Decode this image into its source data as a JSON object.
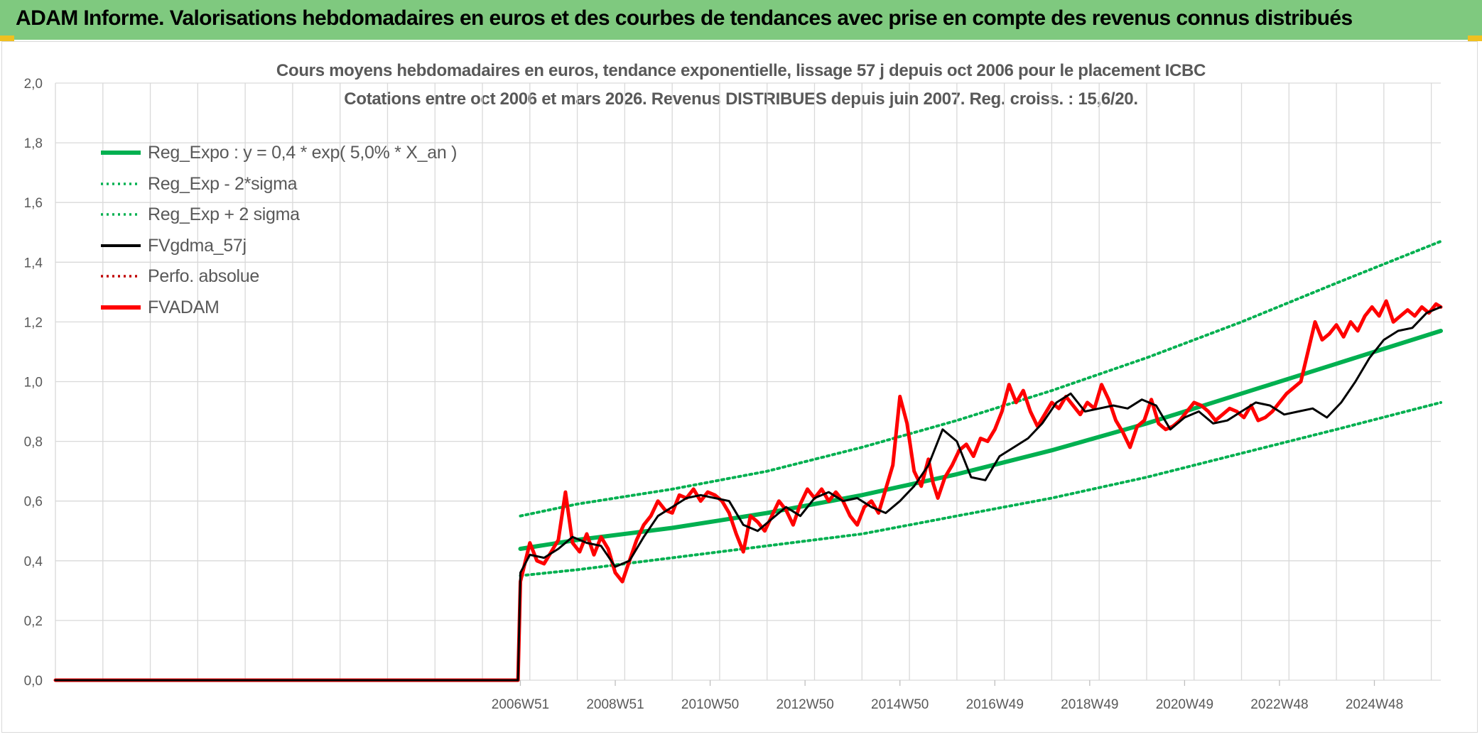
{
  "banner": {
    "title": "ADAM Informe. Valorisations hebdomadaires en euros et des courbes de tendances avec prise en compte des revenus connus distribués"
  },
  "colors": {
    "banner_bg": "#7fc97f",
    "reg_expo": "#00b050",
    "fvgdma": "#000000",
    "perfo": "#c00000",
    "fvadam": "#ff0000",
    "grid": "#d9d9d9"
  },
  "chart_data": {
    "type": "line",
    "title": "Cours moyens hebdomadaires en euros, tendance exponentielle, lissage 57 j depuis oct 2006 pour le placement ICBC",
    "subtitle": "Cotations entre oct 2006 et mars 2026. Revenus DISTRIBUES depuis juin 2007. Reg. croiss. : 15,6/20.",
    "xlabel": "",
    "ylabel": "",
    "ylim": [
      0,
      2
    ],
    "y_ticks": [
      "0,0",
      "0,2",
      "0,4",
      "0,6",
      "0,8",
      "1,0",
      "1,2",
      "1,4",
      "1,6",
      "1,8",
      "2,0"
    ],
    "x_ticks": [
      "2006W51",
      "2008W51",
      "2010W50",
      "2012W50",
      "2014W50",
      "2016W49",
      "2018W49",
      "2020W49",
      "2022W48",
      "2024W48"
    ],
    "grid": true,
    "legend_position": "top-left",
    "legend": [
      {
        "label": "Reg_Expo : y = 0,4 * exp( 5,0% *  X_an )",
        "style": "solid-thick",
        "color": "#00b050"
      },
      {
        "label": "Reg_Exp - 2*sigma",
        "style": "dotted",
        "color": "#00b050"
      },
      {
        "label": "Reg_Exp + 2 sigma",
        "style": "dotted",
        "color": "#00b050"
      },
      {
        "label": "FVgdma_57j",
        "style": "solid",
        "color": "#000000"
      },
      {
        "label": "Perfo. absolue",
        "style": "dotted",
        "color": "#c00000"
      },
      {
        "label": "FVADAM",
        "style": "solid-thick",
        "color": "#ff0000"
      }
    ],
    "x_year_range": [
      1997.0,
      2026.2
    ],
    "data_start_year": 2006.8,
    "series": [
      {
        "name": "Reg_Expo : y = 0,4 * exp( 5,0% *  X_an )",
        "x": [
          2006.8,
          2008,
          2010,
          2012,
          2014,
          2016,
          2018,
          2020,
          2022,
          2024,
          2026.2
        ],
        "values": [
          0.44,
          0.47,
          0.51,
          0.56,
          0.62,
          0.69,
          0.77,
          0.86,
          0.96,
          1.06,
          1.17
        ]
      },
      {
        "name": "Reg_Exp - 2*sigma",
        "x": [
          2006.8,
          2008,
          2010,
          2012,
          2014,
          2016,
          2018,
          2020,
          2022,
          2024,
          2026.2
        ],
        "values": [
          0.35,
          0.37,
          0.41,
          0.45,
          0.49,
          0.55,
          0.61,
          0.68,
          0.76,
          0.84,
          0.93
        ]
      },
      {
        "name": "Reg_Exp + 2 sigma",
        "x": [
          2006.8,
          2008,
          2010,
          2012,
          2014,
          2016,
          2018,
          2020,
          2022,
          2024,
          2026.2
        ],
        "values": [
          0.55,
          0.59,
          0.64,
          0.7,
          0.78,
          0.87,
          0.97,
          1.08,
          1.2,
          1.33,
          1.47
        ]
      },
      {
        "name": "FVgdma_57j",
        "x": [
          1997.0,
          2006.75,
          2006.8,
          2007.0,
          2007.3,
          2007.6,
          2007.9,
          2008.2,
          2008.5,
          2008.8,
          2009.1,
          2009.4,
          2009.7,
          2010.0,
          2010.3,
          2010.6,
          2010.9,
          2011.2,
          2011.5,
          2011.8,
          2012.1,
          2012.4,
          2012.7,
          2013.0,
          2013.3,
          2013.6,
          2013.9,
          2014.2,
          2014.5,
          2014.8,
          2015.1,
          2015.4,
          2015.7,
          2016.0,
          2016.3,
          2016.6,
          2016.9,
          2017.2,
          2017.5,
          2017.8,
          2018.1,
          2018.4,
          2018.7,
          2019.0,
          2019.3,
          2019.6,
          2019.9,
          2020.2,
          2020.5,
          2020.8,
          2021.1,
          2021.4,
          2021.7,
          2022.0,
          2022.3,
          2022.6,
          2022.9,
          2023.2,
          2023.5,
          2023.8,
          2024.1,
          2024.4,
          2024.7,
          2025.0,
          2025.3,
          2025.6,
          2025.9,
          2026.2
        ],
        "values": [
          0.0,
          0.0,
          0.36,
          0.42,
          0.41,
          0.44,
          0.48,
          0.46,
          0.45,
          0.38,
          0.4,
          0.48,
          0.55,
          0.58,
          0.61,
          0.62,
          0.61,
          0.6,
          0.52,
          0.5,
          0.54,
          0.58,
          0.55,
          0.61,
          0.63,
          0.6,
          0.61,
          0.58,
          0.56,
          0.6,
          0.65,
          0.72,
          0.84,
          0.8,
          0.68,
          0.67,
          0.75,
          0.78,
          0.81,
          0.86,
          0.93,
          0.96,
          0.9,
          0.91,
          0.92,
          0.91,
          0.94,
          0.92,
          0.84,
          0.88,
          0.9,
          0.86,
          0.87,
          0.9,
          0.93,
          0.92,
          0.89,
          0.9,
          0.91,
          0.88,
          0.93,
          1.0,
          1.08,
          1.14,
          1.17,
          1.18,
          1.23,
          1.25
        ]
      },
      {
        "name": "FVADAM",
        "x": [
          1997.0,
          2006.75,
          2006.8,
          2007.0,
          2007.15,
          2007.3,
          2007.45,
          2007.6,
          2007.75,
          2007.9,
          2008.05,
          2008.2,
          2008.35,
          2008.5,
          2008.65,
          2008.8,
          2008.95,
          2009.1,
          2009.25,
          2009.4,
          2009.55,
          2009.7,
          2009.85,
          2010.0,
          2010.15,
          2010.3,
          2010.45,
          2010.6,
          2010.75,
          2010.9,
          2011.05,
          2011.2,
          2011.35,
          2011.5,
          2011.65,
          2011.8,
          2011.95,
          2012.1,
          2012.25,
          2012.4,
          2012.55,
          2012.7,
          2012.85,
          2013.0,
          2013.15,
          2013.3,
          2013.45,
          2013.6,
          2013.75,
          2013.9,
          2014.05,
          2014.2,
          2014.35,
          2014.5,
          2014.65,
          2014.8,
          2014.95,
          2015.1,
          2015.25,
          2015.4,
          2015.5,
          2015.6,
          2015.75,
          2015.9,
          2016.05,
          2016.2,
          2016.35,
          2016.5,
          2016.65,
          2016.8,
          2016.95,
          2017.1,
          2017.25,
          2017.4,
          2017.55,
          2017.7,
          2017.85,
          2018.0,
          2018.15,
          2018.3,
          2018.45,
          2018.6,
          2018.75,
          2018.9,
          2019.05,
          2019.2,
          2019.35,
          2019.5,
          2019.65,
          2019.8,
          2019.95,
          2020.1,
          2020.25,
          2020.4,
          2020.55,
          2020.7,
          2020.85,
          2021.0,
          2021.15,
          2021.3,
          2021.45,
          2021.6,
          2021.75,
          2021.9,
          2022.05,
          2022.2,
          2022.35,
          2022.5,
          2022.65,
          2022.8,
          2022.95,
          2023.1,
          2023.25,
          2023.4,
          2023.55,
          2023.7,
          2023.85,
          2024.0,
          2024.15,
          2024.3,
          2024.45,
          2024.6,
          2024.75,
          2024.9,
          2025.05,
          2025.2,
          2025.35,
          2025.5,
          2025.65,
          2025.8,
          2025.95,
          2026.1,
          2026.2
        ],
        "values": [
          0.0,
          0.0,
          0.33,
          0.46,
          0.4,
          0.39,
          0.43,
          0.47,
          0.63,
          0.46,
          0.43,
          0.49,
          0.42,
          0.48,
          0.44,
          0.36,
          0.33,
          0.4,
          0.47,
          0.52,
          0.55,
          0.6,
          0.57,
          0.56,
          0.62,
          0.61,
          0.64,
          0.6,
          0.63,
          0.62,
          0.6,
          0.56,
          0.49,
          0.43,
          0.55,
          0.53,
          0.5,
          0.55,
          0.6,
          0.57,
          0.52,
          0.59,
          0.64,
          0.61,
          0.64,
          0.6,
          0.63,
          0.6,
          0.55,
          0.52,
          0.58,
          0.6,
          0.56,
          0.64,
          0.72,
          0.95,
          0.86,
          0.7,
          0.65,
          0.74,
          0.66,
          0.61,
          0.68,
          0.72,
          0.77,
          0.79,
          0.75,
          0.81,
          0.8,
          0.84,
          0.9,
          0.99,
          0.93,
          0.97,
          0.9,
          0.85,
          0.89,
          0.93,
          0.91,
          0.95,
          0.92,
          0.89,
          0.93,
          0.91,
          0.99,
          0.94,
          0.87,
          0.83,
          0.78,
          0.85,
          0.87,
          0.94,
          0.86,
          0.84,
          0.85,
          0.87,
          0.9,
          0.93,
          0.92,
          0.9,
          0.87,
          0.89,
          0.91,
          0.9,
          0.88,
          0.92,
          0.87,
          0.88,
          0.9,
          0.93,
          0.96,
          0.98,
          1.0,
          1.1,
          1.2,
          1.14,
          1.16,
          1.19,
          1.15,
          1.2,
          1.17,
          1.22,
          1.25,
          1.22,
          1.27,
          1.2,
          1.22,
          1.24,
          1.22,
          1.25,
          1.23,
          1.26,
          1.25
        ]
      }
    ]
  }
}
